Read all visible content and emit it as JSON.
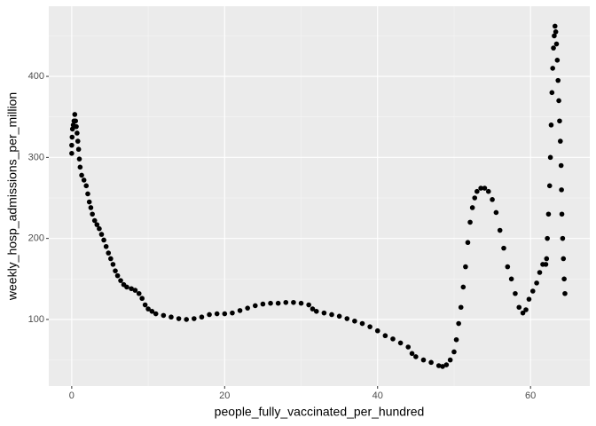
{
  "chart_data": {
    "type": "scatter",
    "x_label": "people_fully_vaccinated_per_hundred",
    "y_label": "weekly_hosp_admissions_per_million",
    "color": "#000000",
    "grid": true,
    "xlim": [
      -3,
      67.75
    ],
    "ylim": [
      17.8,
      486.6
    ],
    "xticks": [
      0,
      20,
      40,
      60
    ],
    "yticks": [
      100,
      200,
      300,
      400
    ],
    "xminor": [
      10,
      30,
      50
    ],
    "yminor": [
      50,
      150,
      250,
      350,
      450
    ],
    "x": [
      0,
      0,
      0.05,
      0.1,
      0.2,
      0.3,
      0.4,
      0.5,
      0.6,
      0.7,
      0.8,
      0.9,
      1.0,
      1.1,
      1.3,
      1.6,
      1.9,
      2.1,
      2.3,
      2.5,
      2.7,
      3.0,
      3.3,
      3.6,
      3.9,
      4.2,
      4.5,
      4.8,
      5.1,
      5.4,
      5.7,
      6.0,
      6.4,
      6.8,
      7.2,
      7.8,
      8.3,
      8.8,
      9.2,
      9.6,
      10,
      10.5,
      11,
      12,
      13,
      14,
      15,
      16,
      17,
      18,
      19,
      20,
      21,
      22,
      23,
      24,
      25,
      26,
      27,
      28,
      29,
      30,
      31,
      31.5,
      32,
      33,
      34,
      35,
      36,
      37,
      38,
      39,
      40,
      41,
      42,
      43,
      44,
      44.5,
      45,
      46,
      47,
      48,
      48.5,
      49,
      49.5,
      50,
      50.3,
      50.6,
      50.9,
      51.2,
      51.5,
      51.8,
      52.1,
      52.4,
      52.7,
      53,
      53.5,
      54,
      54.5,
      55,
      55.5,
      56,
      56.5,
      57,
      57.5,
      58,
      58.5,
      59,
      59.4,
      59.8,
      60.3,
      60.8,
      61.2,
      61.6,
      62,
      62.1,
      62.2,
      62.35,
      62.5,
      62.6,
      62.7,
      62.8,
      62.9,
      63,
      63.1,
      63.2,
      63.3,
      63.4,
      63.5,
      63.6,
      63.7,
      63.8,
      63.9,
      64,
      64.05,
      64.1,
      64.2,
      64.3,
      64.4,
      64.5
    ],
    "y": [
      305,
      315,
      325,
      335,
      340,
      345,
      353,
      345,
      338,
      330,
      320,
      310,
      298,
      288,
      278,
      272,
      265,
      255,
      245,
      238,
      230,
      222,
      217,
      212,
      205,
      198,
      190,
      182,
      175,
      168,
      160,
      154,
      148,
      143,
      140,
      138,
      136,
      132,
      126,
      118,
      113,
      110,
      107,
      105,
      103,
      101,
      100,
      101,
      103,
      106,
      107,
      107,
      108,
      111,
      114,
      117,
      119,
      120,
      120,
      121,
      121,
      120,
      118,
      113,
      110,
      108,
      106,
      104,
      101,
      98,
      95,
      91,
      86,
      80,
      76,
      71,
      66,
      58,
      54,
      50,
      47,
      43,
      42,
      44,
      50,
      60,
      75,
      95,
      115,
      140,
      165,
      195,
      220,
      238,
      250,
      258,
      262,
      262,
      258,
      248,
      232,
      210,
      188,
      165,
      150,
      132,
      115,
      108,
      112,
      125,
      135,
      145,
      158,
      168,
      168,
      175,
      200,
      230,
      265,
      300,
      340,
      380,
      410,
      435,
      450,
      462,
      455,
      440,
      420,
      395,
      370,
      345,
      320,
      290,
      260,
      230,
      200,
      175,
      150,
      132
    ]
  }
}
